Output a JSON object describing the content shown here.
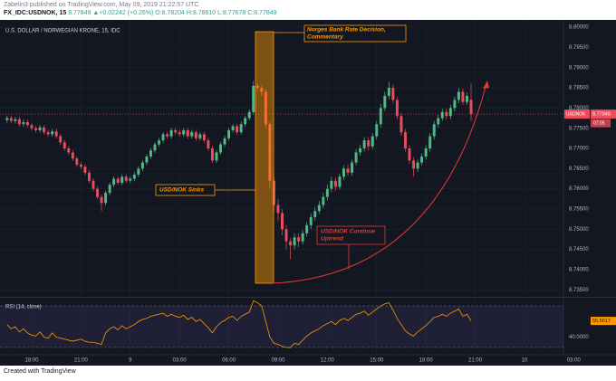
{
  "header": {
    "published": "Zabelin3 published on TradingView.com, May 09, 2019 21:22:57 UTC",
    "symbol": "FX_IDC:USDNOK, 15",
    "quote": "8.77849 ▲+0.02242 (+0.26%) O:8.78204 H:8.78610 L:8.77678 C:8.77849"
  },
  "footer": "Created with TradingView",
  "chart_data": [
    {
      "type": "candlestick",
      "title": "U.S. DOLLAR / NORWEGIAN KRONE, 15, IDC",
      "symbol_tag": "USDNOK",
      "countdown": "07:05",
      "up_color": "#53b987",
      "down_color": "#eb4d5c",
      "grid": true,
      "x": [
        -6,
        -5,
        -4,
        -3,
        -2,
        -1,
        0,
        1,
        2,
        3,
        4,
        5,
        6,
        7,
        8,
        9,
        10,
        11,
        12,
        13,
        14,
        15,
        16,
        17,
        18,
        19,
        20,
        21,
        22,
        23,
        24,
        25,
        26,
        27,
        28,
        29,
        30,
        31,
        32,
        33,
        34,
        35,
        36,
        37,
        38,
        39,
        40,
        41,
        42,
        43,
        44,
        45,
        46,
        47,
        48,
        49,
        50,
        51,
        52,
        53,
        54,
        55,
        56,
        57,
        58,
        59,
        60,
        61,
        62,
        63,
        64,
        65,
        66,
        67,
        68,
        69,
        70,
        71,
        72,
        73,
        74,
        75,
        76,
        77,
        78,
        79,
        80,
        81,
        82,
        83,
        84,
        85,
        86,
        87,
        88,
        89,
        90,
        91,
        92,
        93,
        94,
        95,
        96,
        97,
        98,
        99,
        100,
        101,
        102,
        103,
        104,
        105,
        106,
        107
      ],
      "open": [
        8.777,
        8.7775,
        8.7768,
        8.7772,
        8.776,
        8.7765,
        8.7758,
        8.775,
        8.7745,
        8.7752,
        8.774,
        8.7735,
        8.7742,
        8.773,
        8.7715,
        8.77,
        8.769,
        8.7675,
        8.766,
        8.7655,
        8.764,
        8.762,
        8.76,
        8.758,
        8.7565,
        8.759,
        8.761,
        8.7625,
        8.7615,
        8.763,
        8.762,
        8.7625,
        8.7635,
        8.765,
        8.7665,
        8.768,
        8.7695,
        8.771,
        8.772,
        8.7735,
        8.773,
        8.7745,
        8.774,
        8.7735,
        8.7745,
        8.773,
        8.774,
        8.7725,
        8.7735,
        8.772,
        8.77,
        8.767,
        8.769,
        8.771,
        8.7725,
        8.7745,
        8.7755,
        8.774,
        8.776,
        8.7775,
        8.779,
        8.7855,
        8.785,
        8.784,
        8.776,
        8.762,
        8.756,
        8.754,
        8.75,
        8.747,
        8.746,
        8.748,
        8.747,
        8.749,
        8.751,
        8.753,
        8.7545,
        8.756,
        8.758,
        8.76,
        8.762,
        8.7605,
        8.763,
        8.765,
        8.764,
        8.7665,
        8.769,
        8.77,
        8.772,
        8.7705,
        8.773,
        8.776,
        8.78,
        8.783,
        8.785,
        8.782,
        8.778,
        8.774,
        8.77,
        8.767,
        8.765,
        8.7665,
        8.768,
        8.77,
        8.773,
        8.776,
        8.7775,
        8.779,
        8.778,
        8.78,
        8.782,
        8.784,
        8.7815,
        8.78204
      ],
      "high": [
        8.7781,
        8.7781,
        8.7778,
        8.7778,
        8.7771,
        8.7771,
        8.7764,
        8.7756,
        8.7758,
        8.7758,
        8.7746,
        8.7748,
        8.7748,
        8.7736,
        8.7721,
        8.7706,
        8.7696,
        8.7681,
        8.7666,
        8.7661,
        8.7646,
        8.7626,
        8.7606,
        8.7586,
        8.7596,
        8.7616,
        8.7631,
        8.7631,
        8.7636,
        8.7636,
        8.7631,
        8.7641,
        8.7656,
        8.7671,
        8.7686,
        8.7701,
        8.7716,
        8.7726,
        8.7741,
        8.7741,
        8.7751,
        8.7751,
        8.7746,
        8.7751,
        8.7751,
        8.7746,
        8.7746,
        8.7741,
        8.7741,
        8.7726,
        8.7706,
        8.7696,
        8.7716,
        8.7731,
        8.7751,
        8.7761,
        8.7761,
        8.7766,
        8.7781,
        8.7796,
        8.7866,
        8.7862,
        8.7856,
        8.7846,
        8.7766,
        8.763,
        8.7575,
        8.755,
        8.751,
        8.7478,
        8.749,
        8.749,
        8.7498,
        8.7518,
        8.754,
        8.7555,
        8.757,
        8.759,
        8.761,
        8.763,
        8.7628,
        8.7638,
        8.7658,
        8.766,
        8.7672,
        8.7698,
        8.771,
        8.7728,
        8.7728,
        8.7738,
        8.7768,
        8.781,
        8.784,
        8.7865,
        8.7858,
        8.7828,
        8.7788,
        8.7748,
        8.7708,
        8.7678,
        8.7672,
        8.7688,
        8.7708,
        8.7738,
        8.7768,
        8.7783,
        8.7798,
        8.7798,
        8.7808,
        8.7828,
        8.785,
        8.7848,
        8.7838,
        8.7861
      ],
      "low": [
        8.7764,
        8.7762,
        8.7762,
        8.7754,
        8.7754,
        8.7752,
        8.7744,
        8.7739,
        8.7739,
        8.7734,
        8.7729,
        8.7729,
        8.7724,
        8.7709,
        8.7694,
        8.7684,
        8.7669,
        8.7654,
        8.7649,
        8.7634,
        8.7614,
        8.7594,
        8.7574,
        8.7545,
        8.7559,
        8.7584,
        8.7604,
        8.7609,
        8.7609,
        8.7614,
        8.7614,
        8.7619,
        8.7629,
        8.7644,
        8.7659,
        8.7674,
        8.7689,
        8.7704,
        8.7714,
        8.7724,
        8.7724,
        8.7734,
        8.7729,
        8.7729,
        8.7724,
        8.7724,
        8.7719,
        8.7719,
        8.7714,
        8.7694,
        8.7664,
        8.7664,
        8.7684,
        8.7704,
        8.7719,
        8.7739,
        8.7734,
        8.7734,
        8.7754,
        8.7769,
        8.7784,
        8.7842,
        8.783,
        8.775,
        8.76,
        8.7545,
        8.752,
        8.7485,
        8.745,
        8.7426,
        8.745,
        8.7455,
        8.7462,
        8.7482,
        8.75,
        8.7522,
        8.7538,
        8.7552,
        8.7572,
        8.7592,
        8.7595,
        8.7598,
        8.7622,
        8.7632,
        8.7632,
        8.7658,
        8.7682,
        8.7692,
        8.7695,
        8.7698,
        8.7722,
        8.7752,
        8.7792,
        8.7822,
        8.7812,
        8.7772,
        8.7732,
        8.7692,
        8.7662,
        8.763,
        8.7642,
        8.7658,
        8.7672,
        8.7692,
        8.7722,
        8.7752,
        8.7768,
        8.7772,
        8.7772,
        8.7792,
        8.7812,
        8.7808,
        8.7808,
        8.77678
      ],
      "close": [
        8.7775,
        8.7768,
        8.7772,
        8.776,
        8.7765,
        8.7758,
        8.775,
        8.7745,
        8.7752,
        8.774,
        8.7735,
        8.7742,
        8.773,
        8.7715,
        8.77,
        8.769,
        8.7675,
        8.766,
        8.7655,
        8.764,
        8.762,
        8.76,
        8.758,
        8.7565,
        8.759,
        8.761,
        8.7625,
        8.7615,
        8.763,
        8.762,
        8.7625,
        8.7635,
        8.765,
        8.7665,
        8.768,
        8.7695,
        8.771,
        8.772,
        8.7735,
        8.773,
        8.7745,
        8.774,
        8.7735,
        8.7745,
        8.773,
        8.774,
        8.7725,
        8.7735,
        8.772,
        8.77,
        8.767,
        8.769,
        8.771,
        8.7725,
        8.7745,
        8.7755,
        8.774,
        8.776,
        8.7775,
        8.779,
        8.7855,
        8.785,
        8.784,
        8.776,
        8.762,
        8.756,
        8.754,
        8.75,
        8.747,
        8.746,
        8.748,
        8.747,
        8.749,
        8.751,
        8.753,
        8.7545,
        8.756,
        8.758,
        8.76,
        8.762,
        8.7605,
        8.763,
        8.765,
        8.764,
        8.7665,
        8.769,
        8.77,
        8.772,
        8.7705,
        8.773,
        8.776,
        8.78,
        8.783,
        8.785,
        8.782,
        8.778,
        8.774,
        8.77,
        8.767,
        8.765,
        8.7665,
        8.768,
        8.77,
        8.773,
        8.776,
        8.7775,
        8.779,
        8.778,
        8.78,
        8.782,
        8.784,
        8.7815,
        8.783,
        8.77849
      ],
      "xlim": [
        -7.72,
        129.5
      ],
      "xticks": [
        {
          "value": 0,
          "label": "18:00"
        },
        {
          "value": 12,
          "label": "21:00"
        },
        {
          "value": 24,
          "label": "9"
        },
        {
          "value": 36,
          "label": "03:00"
        },
        {
          "value": 48,
          "label": "06:00"
        },
        {
          "value": 60,
          "label": "09:00"
        },
        {
          "value": 72,
          "label": "12:00"
        },
        {
          "value": 84,
          "label": "15:00"
        },
        {
          "value": 96,
          "label": "18:00"
        },
        {
          "value": 108,
          "label": "21:00"
        },
        {
          "value": 120,
          "label": "10"
        },
        {
          "value": 132,
          "label": "03:00"
        }
      ],
      "ylim": [
        8.7335,
        8.8018
      ],
      "yticks": [
        {
          "value": 8.735,
          "label": "8.73500"
        },
        {
          "value": 8.74,
          "label": "8.74000"
        },
        {
          "value": 8.745,
          "label": "8.74500"
        },
        {
          "value": 8.75,
          "label": "8.75000"
        },
        {
          "value": 8.755,
          "label": "8.75500"
        },
        {
          "value": 8.76,
          "label": "8.76000"
        },
        {
          "value": 8.765,
          "label": "8.76500"
        },
        {
          "value": 8.77,
          "label": "8.77000"
        },
        {
          "value": 8.775,
          "label": "8.77500"
        },
        {
          "value": 8.78,
          "label": "8.78000"
        },
        {
          "value": 8.785,
          "label": "8.78500"
        },
        {
          "value": 8.79,
          "label": "8.79000"
        },
        {
          "value": 8.795,
          "label": "8.79500"
        },
        {
          "value": 8.8,
          "label": "8.80000"
        }
      ],
      "annotations": [
        {
          "lines": [
            "Norges Bank Rate Decision,",
            "Commentary"
          ]
        },
        {
          "lines": [
            "USD/NOK Sinks"
          ]
        },
        {
          "lines": [
            "USD/NOK Continue",
            "Uptrend"
          ]
        }
      ]
    },
    {
      "type": "line",
      "title": "RSI (14, close)",
      "color": "#ff9800",
      "values": [
        52,
        48,
        50,
        45,
        48,
        44,
        42,
        41,
        45,
        40,
        39,
        44,
        40,
        39,
        38,
        37,
        36,
        37,
        38,
        36,
        35,
        35,
        34,
        33,
        44,
        48,
        50,
        47,
        51,
        48,
        50,
        52,
        55,
        57,
        58,
        60,
        61,
        62,
        63,
        60,
        62,
        60,
        59,
        61,
        57,
        59,
        55,
        57,
        53,
        49,
        44,
        50,
        54,
        56,
        59,
        60,
        56,
        60,
        62,
        64,
        75,
        73,
        70,
        55,
        40,
        34,
        33,
        31,
        30,
        30,
        34,
        33,
        37,
        41,
        44,
        46,
        48,
        51,
        53,
        55,
        52,
        56,
        58,
        56,
        59,
        62,
        63,
        65,
        61,
        64,
        67,
        70,
        72,
        73,
        66,
        58,
        52,
        46,
        43,
        41,
        45,
        48,
        51,
        55,
        59,
        60,
        62,
        60,
        63,
        65,
        67,
        60,
        62,
        55.5617
      ],
      "ylim": [
        23,
        77
      ],
      "yticks": [
        {
          "value": 40,
          "label": "40.0000"
        }
      ],
      "band": [
        30,
        70
      ]
    }
  ]
}
